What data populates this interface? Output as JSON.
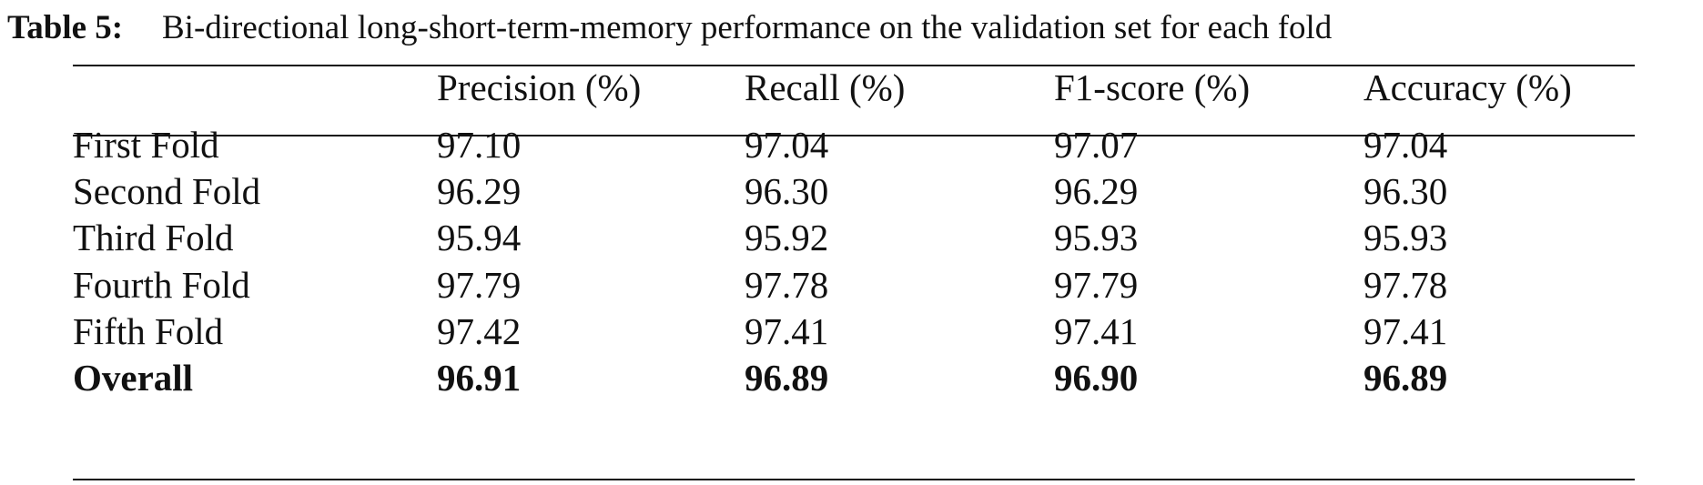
{
  "caption": {
    "label": "Table 5:",
    "text": "Bi-directional long-short-term-memory performance on the validation set for each fold"
  },
  "table": {
    "columns": [
      "Precision (%)",
      "Recall (%)",
      "F1-score (%)",
      "Accuracy (%)"
    ],
    "rows": [
      [
        "First Fold",
        "97.10",
        "97.04",
        "97.07",
        "97.04"
      ],
      [
        "Second Fold",
        "96.29",
        "96.30",
        "96.29",
        "96.30"
      ],
      [
        "Third Fold",
        "95.94",
        "95.92",
        "95.93",
        "95.93"
      ],
      [
        "Fourth Fold",
        "97.79",
        "97.78",
        "97.79",
        "97.78"
      ],
      [
        "Fifth Fold",
        "97.42",
        "97.41",
        "97.41",
        "97.41"
      ]
    ],
    "total": [
      "Overall",
      "96.91",
      "96.89",
      "96.90",
      "96.89"
    ]
  }
}
